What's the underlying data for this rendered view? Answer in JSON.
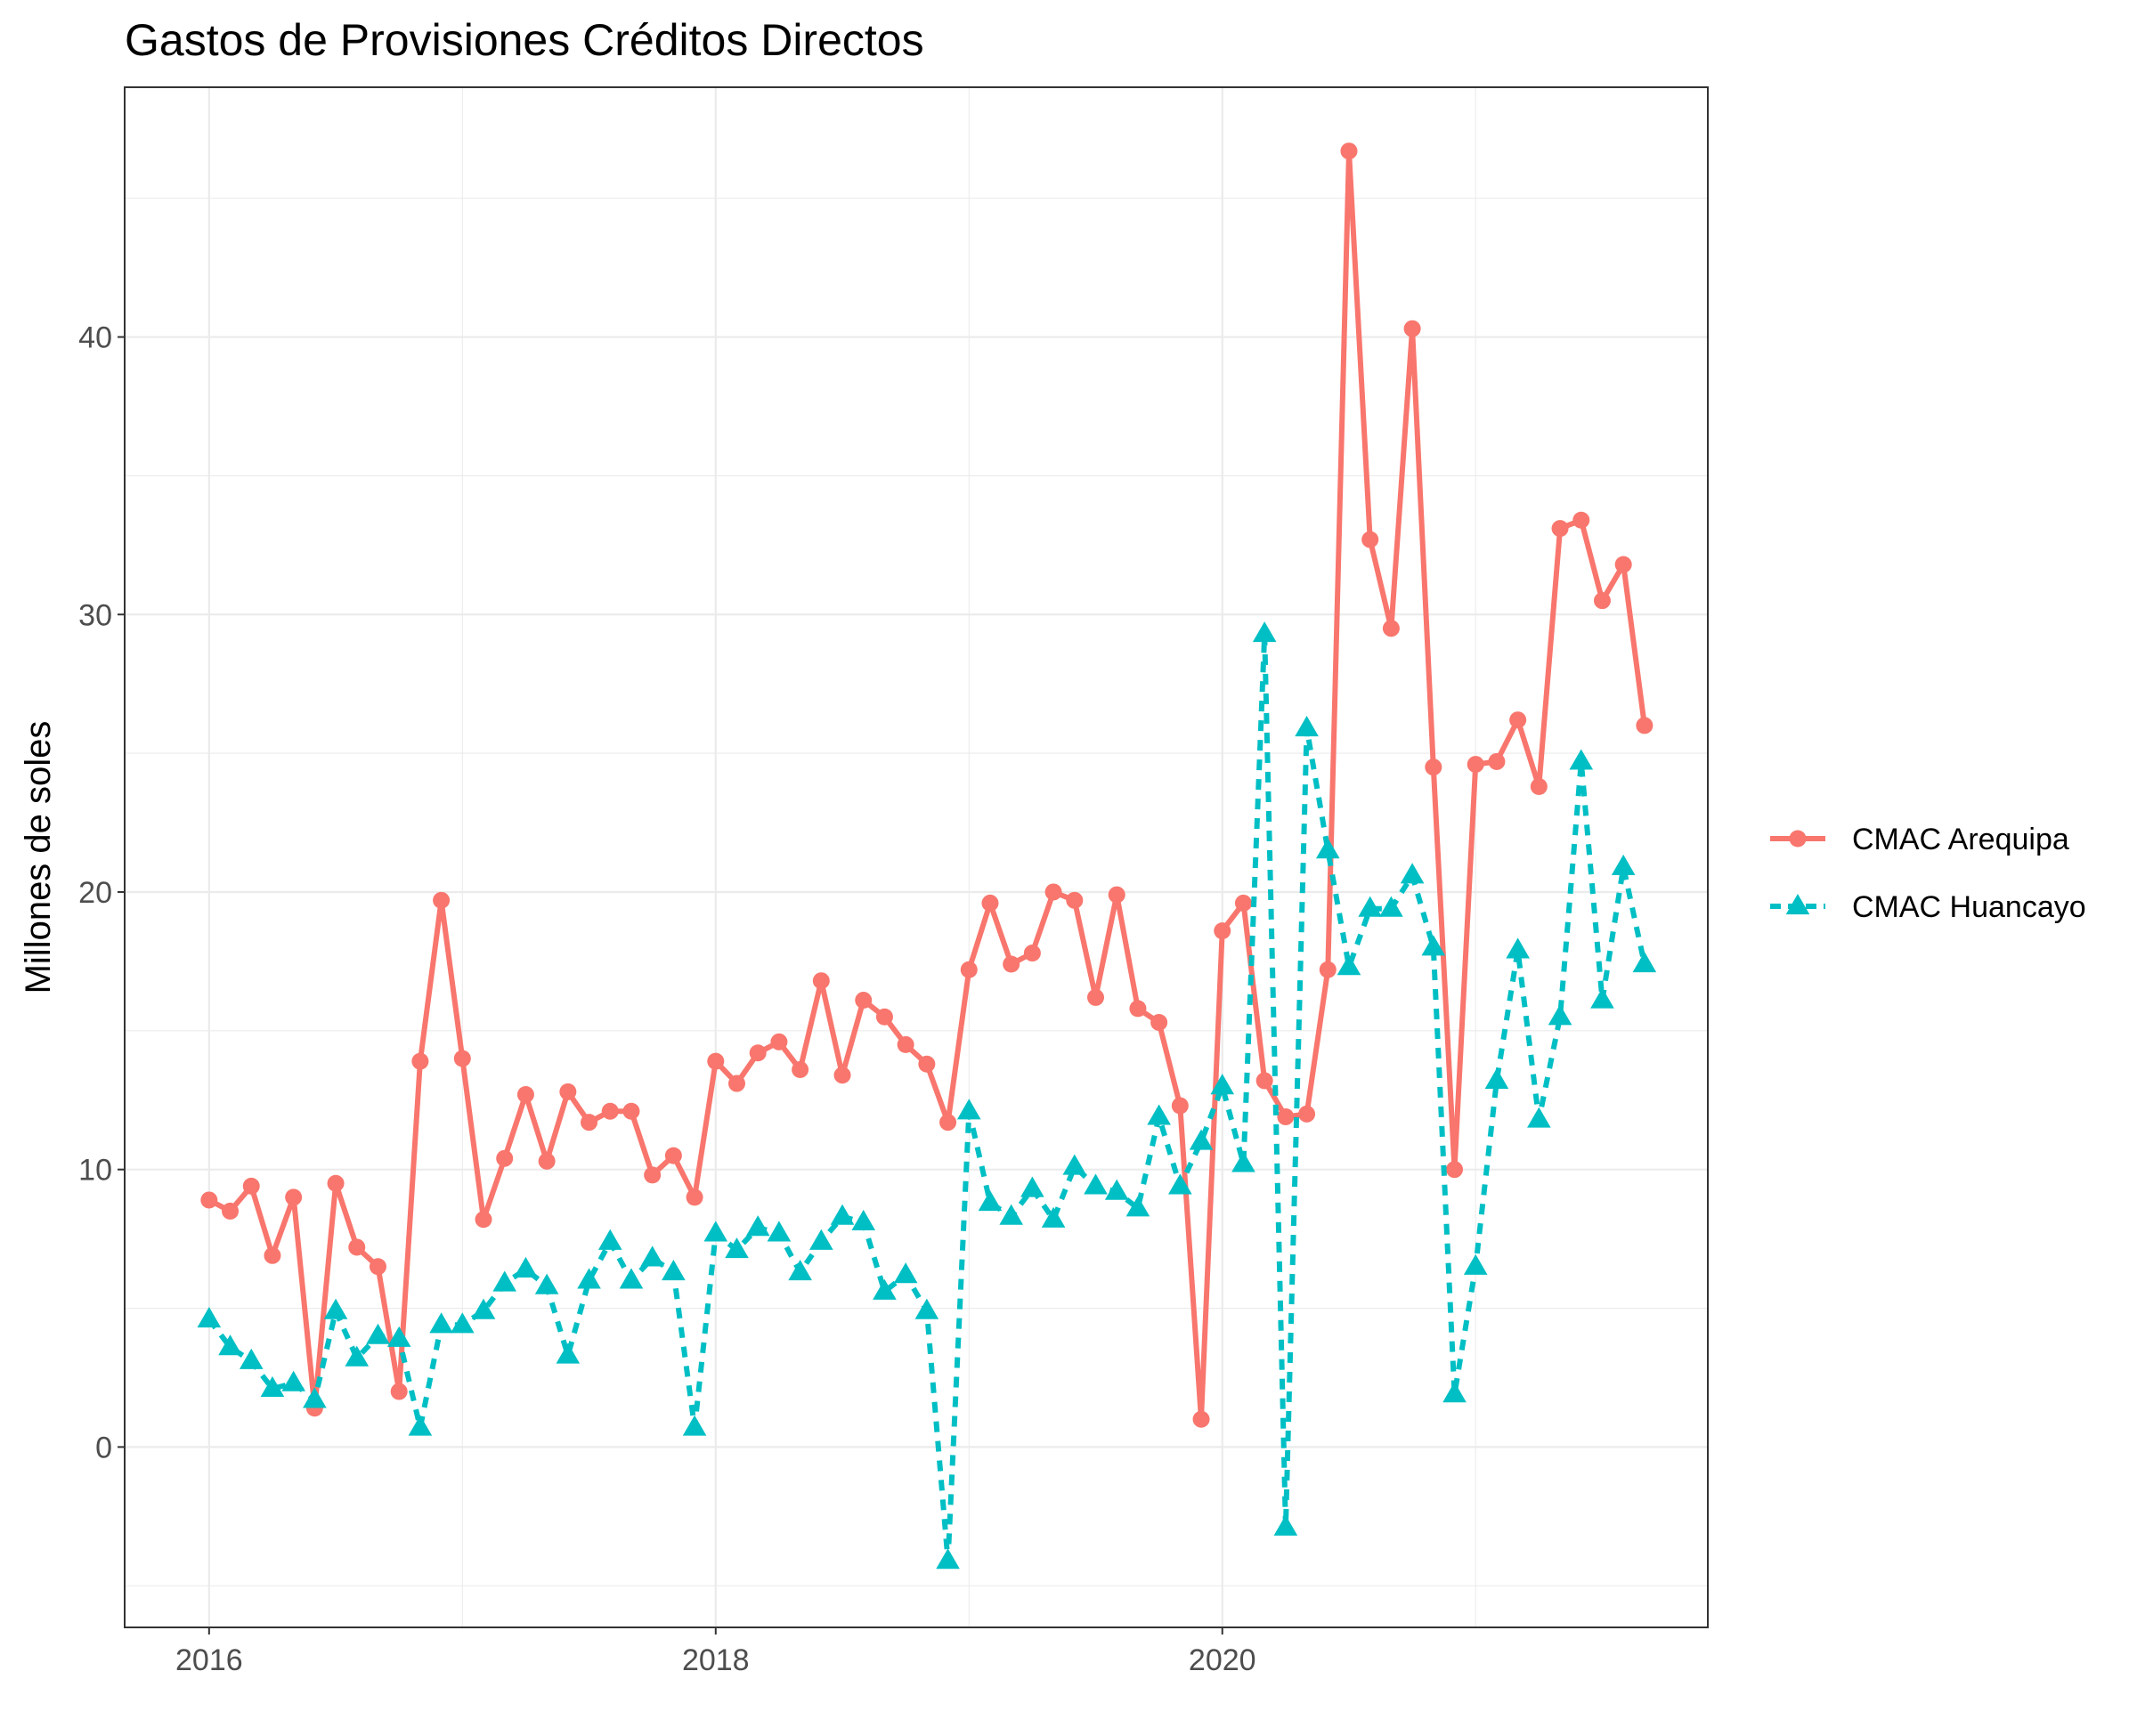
{
  "chart_data": {
    "type": "line",
    "title": "Gastos de Provisiones Créditos Directos",
    "xlabel": "",
    "ylabel": "Millones de soles",
    "x_ticks": [
      "2016",
      "2018",
      "2020"
    ],
    "y_ticks": [
      "0",
      "10",
      "20",
      "30",
      "40"
    ],
    "xlim": [
      "2015-09",
      "2021-12"
    ],
    "ylim": [
      -6.5,
      49
    ],
    "grid": true,
    "legend_position": "right",
    "start": "2016-01",
    "series": [
      {
        "name": "CMAC Arequipa",
        "color": "#F8766D",
        "line_style": "solid",
        "marker": "circle",
        "values": [
          8.9,
          8.5,
          9.4,
          6.9,
          9.0,
          1.4,
          9.5,
          7.2,
          6.5,
          2.0,
          13.9,
          19.7,
          14.0,
          8.2,
          10.4,
          12.7,
          10.3,
          12.8,
          11.7,
          12.1,
          12.1,
          9.8,
          10.5,
          9.0,
          13.9,
          13.1,
          14.2,
          14.6,
          13.6,
          16.8,
          13.4,
          16.1,
          15.5,
          14.5,
          13.8,
          11.7,
          17.2,
          19.6,
          17.4,
          17.8,
          20.0,
          19.7,
          16.2,
          19.9,
          15.8,
          15.3,
          12.3,
          1.0,
          18.6,
          19.6,
          13.2,
          11.9,
          12.0,
          17.2,
          46.7,
          32.7,
          29.5,
          40.3,
          24.5,
          10.0,
          24.6,
          24.7,
          26.2,
          23.8,
          33.1,
          33.4,
          30.5,
          31.8,
          26.0
        ]
      },
      {
        "name": "CMAC Huancayo",
        "color": "#00BFC4",
        "line_style": "dashed",
        "marker": "triangle",
        "values": [
          4.6,
          3.6,
          3.1,
          2.1,
          2.3,
          1.7,
          4.9,
          3.2,
          4.0,
          3.9,
          0.7,
          4.4,
          4.4,
          4.9,
          5.9,
          6.4,
          5.8,
          3.3,
          6.0,
          7.4,
          6.0,
          6.8,
          6.3,
          0.7,
          7.7,
          7.1,
          7.9,
          7.7,
          6.3,
          7.4,
          8.3,
          8.1,
          5.6,
          6.2,
          4.9,
          -4.1,
          12.1,
          8.8,
          8.3,
          9.3,
          8.2,
          10.1,
          9.4,
          9.2,
          8.6,
          11.9,
          9.4,
          11.0,
          13.0,
          10.2,
          29.3,
          -2.9,
          25.9,
          21.5,
          17.3,
          19.4,
          19.4,
          20.6,
          18.0,
          1.9,
          6.5,
          13.2,
          17.9,
          11.8,
          15.5,
          24.7,
          16.1,
          20.9,
          17.4
        ]
      }
    ]
  }
}
